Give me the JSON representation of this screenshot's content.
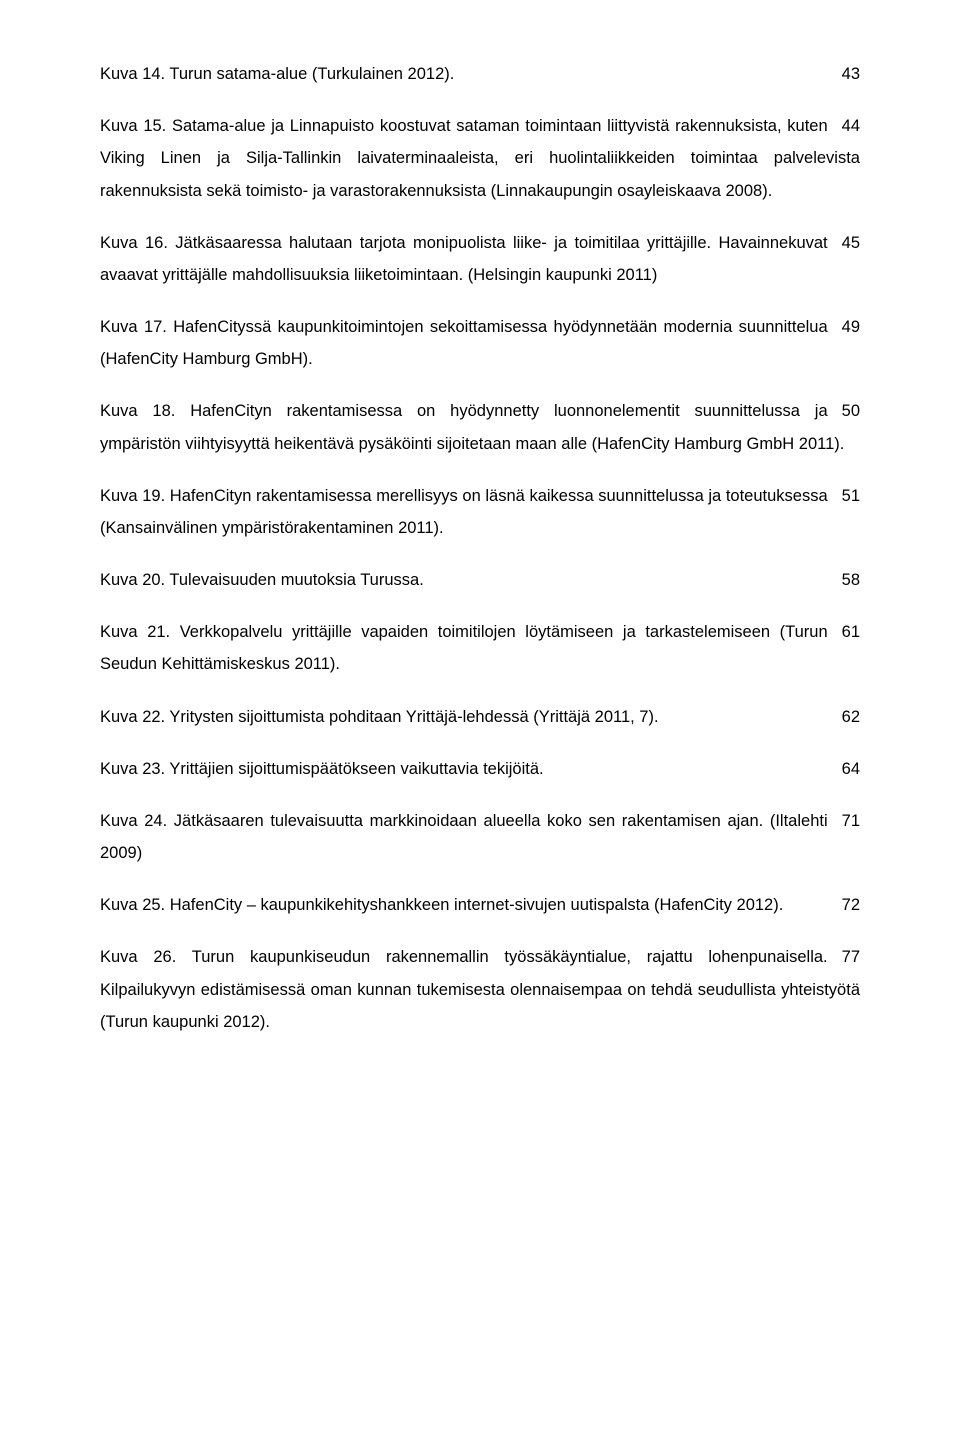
{
  "entries": [
    {
      "text": "Kuva 14. Turun satama-alue (Turkulainen 2012).",
      "page": "43"
    },
    {
      "text": "Kuva 15. Satama-alue ja Linnapuisto koostuvat sataman toimintaan liittyvistä rakennuksista, kuten Viking Linen ja Silja-Tallinkin laivaterminaaleista, eri huolintaliikkeiden toimintaa palvelevista rakennuksista sekä toimisto- ja varastorakennuksista (Linnakaupungin osayleiskaava 2008).",
      "page": "44"
    },
    {
      "text": "Kuva 16. Jätkäsaaressa halutaan tarjota monipuolista liike- ja toimitilaa yrittäjille. Havainnekuvat avaavat yrittäjälle mahdollisuuksia liiketoimintaan. (Helsingin kaupunki 2011)",
      "page": "45"
    },
    {
      "text": "Kuva 17. HafenCityssä kaupunkitoimintojen sekoittamisessa hyödynnetään modernia suunnittelua (HafenCity Hamburg GmbH).",
      "page": "49"
    },
    {
      "text": "Kuva 18. HafenCityn rakentamisessa on hyödynnetty luonnonelementit suunnittelussa ja ympäristön viihtyisyyttä heikentävä pysäköinti sijoitetaan maan alle (HafenCity Hamburg GmbH 2011).",
      "page": "50"
    },
    {
      "text": "Kuva 19. HafenCityn rakentamisessa merellisyys on läsnä kaikessa suunnittelussa ja toteutuksessa (Kansainvälinen ympäristörakentaminen 2011).",
      "page": "51"
    },
    {
      "text": "Kuva 20. Tulevaisuuden muutoksia Turussa.",
      "page": "58"
    },
    {
      "text": "Kuva 21. Verkkopalvelu yrittäjille vapaiden toimitilojen löytämiseen ja tarkastelemiseen (Turun Seudun Kehittämiskeskus 2011).",
      "page": "61"
    },
    {
      "text": "Kuva 22. Yritysten sijoittumista pohditaan Yrittäjä-lehdessä (Yrittäjä 2011, 7).",
      "page": "62"
    },
    {
      "text": "Kuva 23. Yrittäjien sijoittumispäätökseen vaikuttavia tekijöitä.",
      "page": "64"
    },
    {
      "text": "Kuva 24. Jätkäsaaren tulevaisuutta markkinoidaan alueella koko sen rakentamisen ajan. (Iltalehti 2009)",
      "page": "71"
    },
    {
      "text": "Kuva 25. HafenCity – kaupunkikehityshankkeen internet-sivujen uutispalsta (HafenCity 2012).",
      "page": "72"
    },
    {
      "text": "Kuva 26. Turun kaupunkiseudun rakennemallin työssäkäyntialue, rajattu lohenpunaisella. Kilpailukyvyn edistämisessä oman kunnan tukemisesta olennaisempaa on tehdä seudullista yhteistyötä (Turun kaupunki 2012).",
      "page": "77"
    }
  ]
}
